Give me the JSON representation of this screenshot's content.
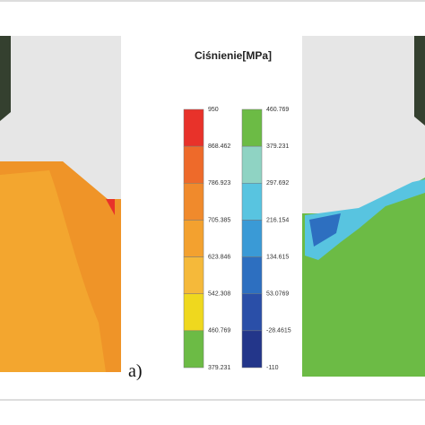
{
  "figure": {
    "title": "Ciśnienie[MPa]",
    "panel_label": "a)",
    "left_scale": {
      "labels": [
        "950",
        "868.462",
        "786.923",
        "705.385",
        "623.846",
        "542.308",
        "460.769",
        "379.231"
      ],
      "colors": [
        "#e8322a",
        "#ee6a2a",
        "#f08a2c",
        "#f3a12f",
        "#f5b93a",
        "#efd81e",
        "#6cbb45"
      ]
    },
    "right_scale": {
      "labels": [
        "460.769",
        "379.231",
        "297.692",
        "216.154",
        "134.615",
        "53.0769",
        "-28.4615",
        "-110"
      ],
      "colors": [
        "#6cbb45",
        "#8fd3c3",
        "#58c4e0",
        "#3a9ad6",
        "#2d6fc0",
        "#2a4fa8",
        "#23368a"
      ]
    }
  }
}
